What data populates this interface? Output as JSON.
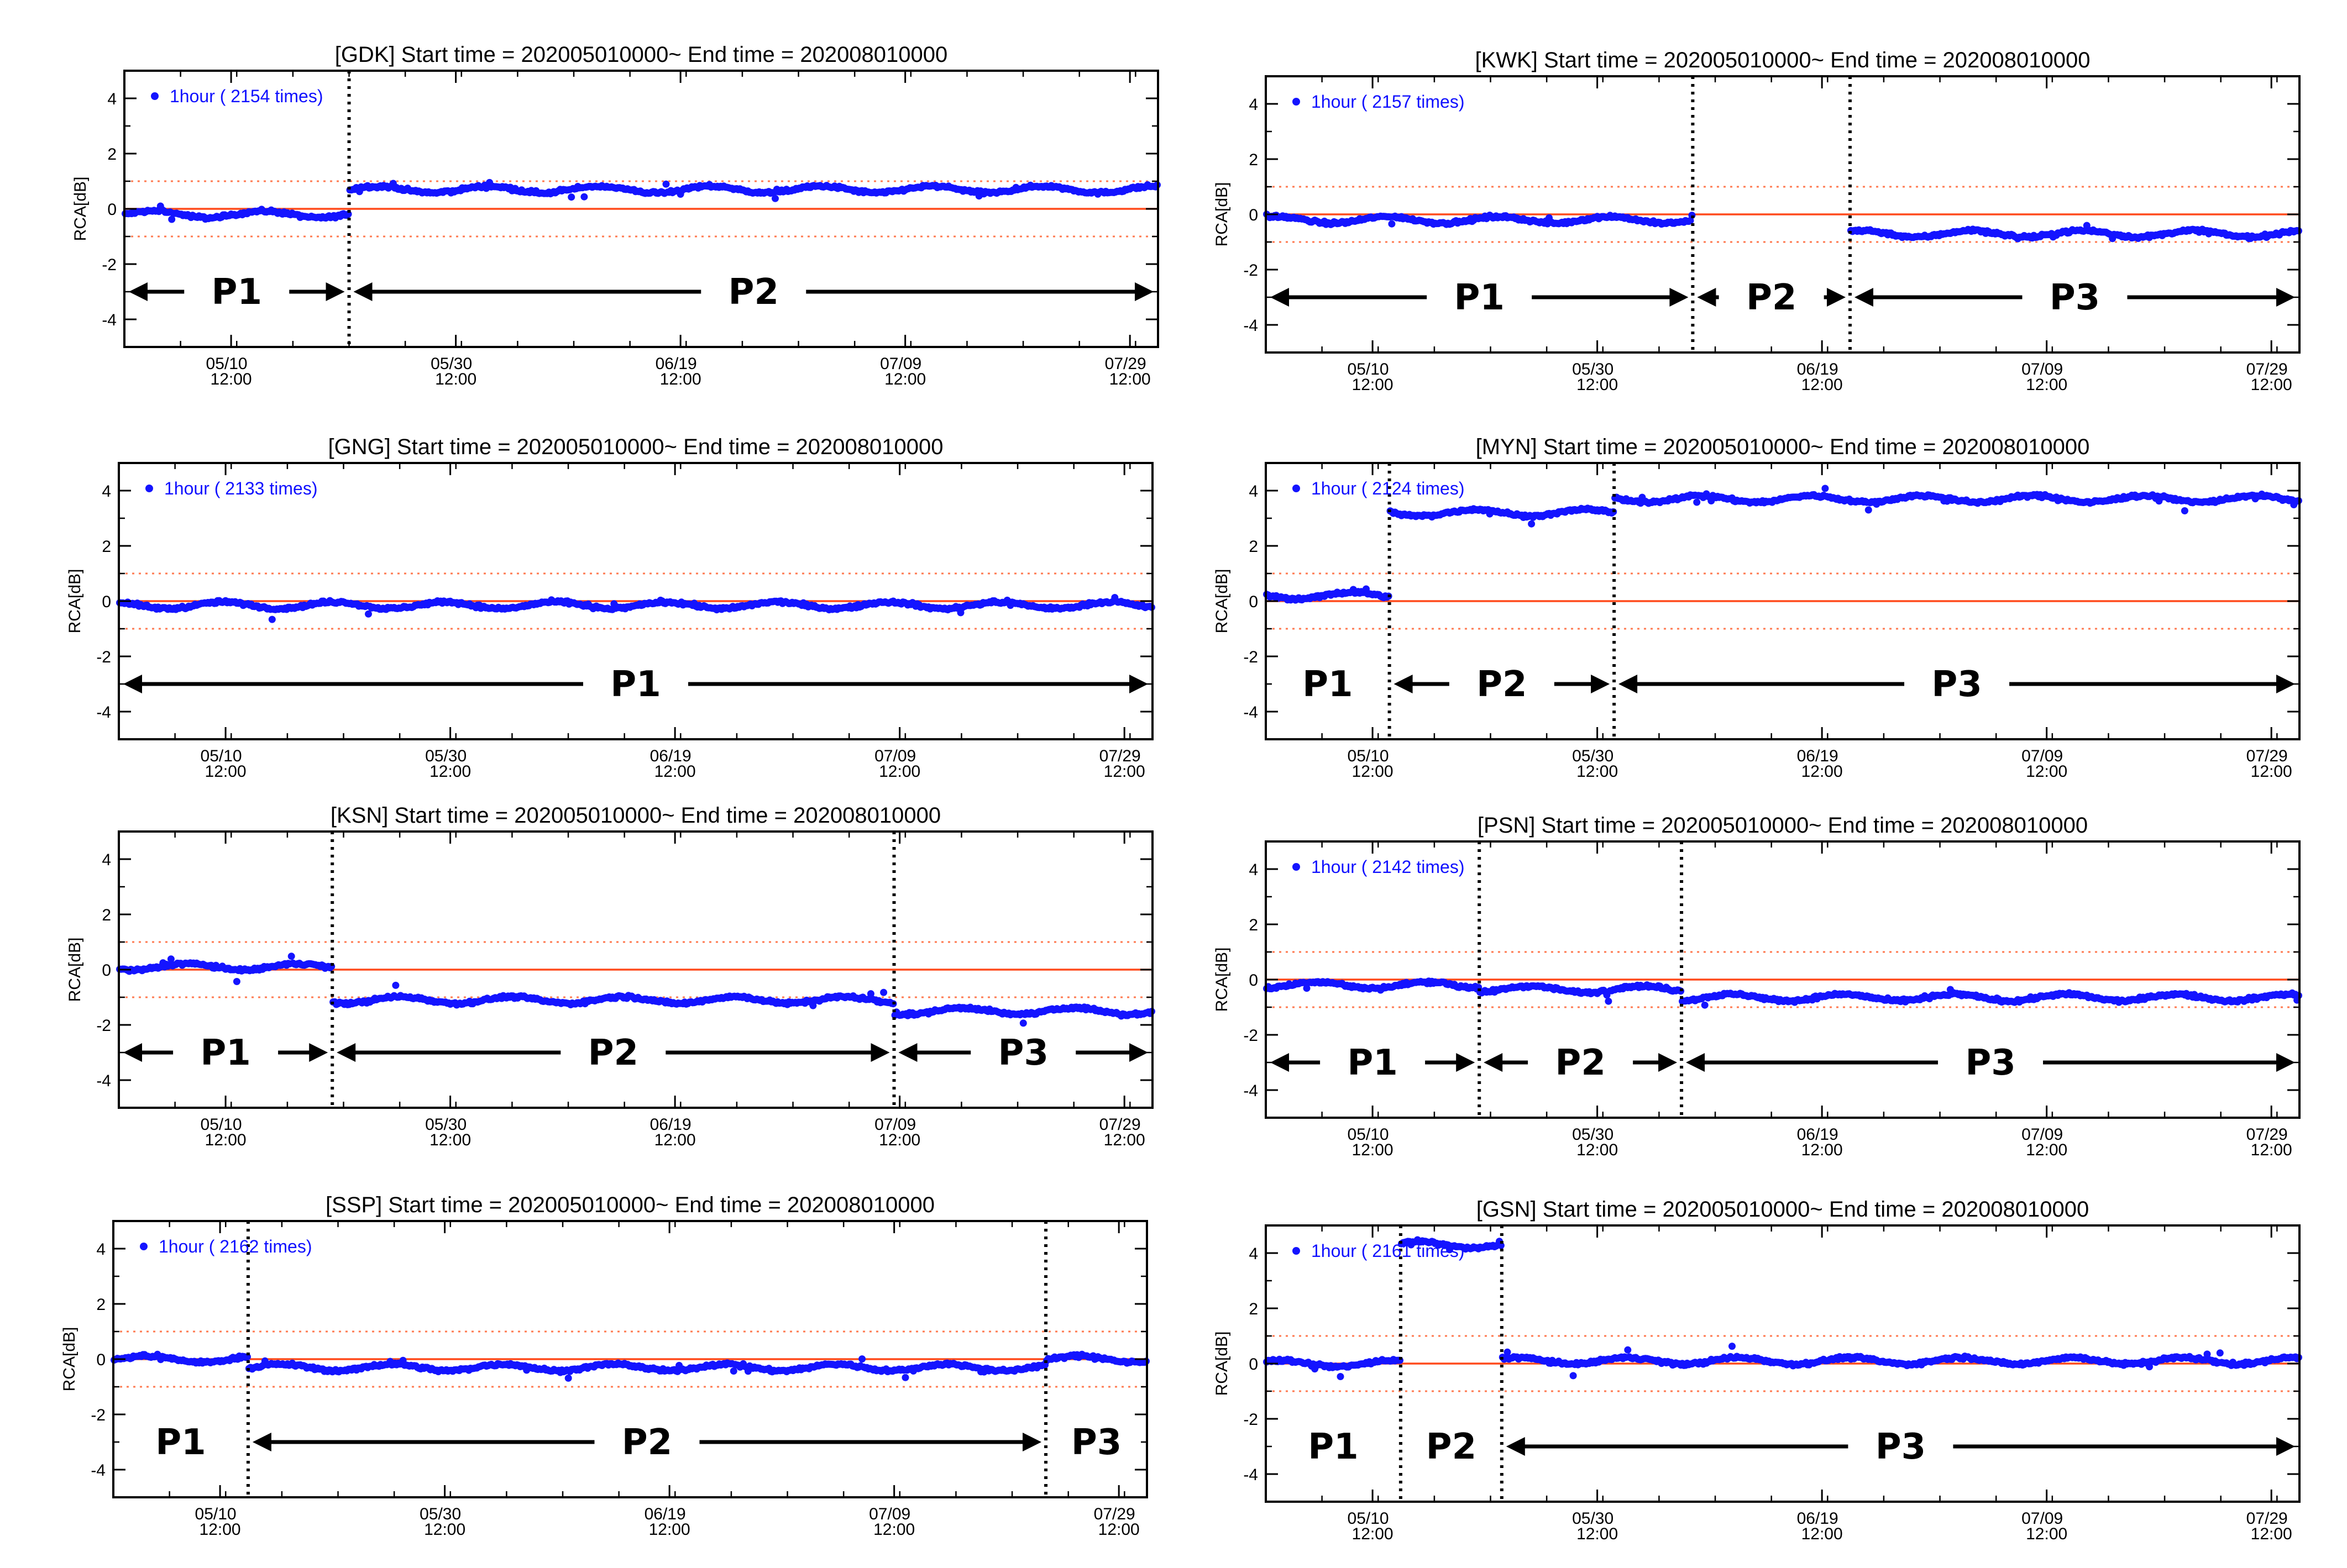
{
  "colors": {
    "points": "#1414ff",
    "reference": "#ff4a1c",
    "threshold": "#ff7a50",
    "axis": "#000000"
  },
  "chart_data": [
    {
      "type": "scatter",
      "title": "[GDK] Start time = 202005010000~ End time = 202008010000",
      "ylabel": "RCA[dB]",
      "xlim": [
        "2020-05-01 00:00",
        "2020-08-01 00:00"
      ],
      "ylim": [
        -5,
        5
      ],
      "yticks": [
        "4",
        "2",
        "0",
        "-2",
        "-4"
      ],
      "xticks": [
        [
          "05/10",
          "12:00"
        ],
        [
          "05/30",
          "12:00"
        ],
        [
          "06/19",
          "12:00"
        ],
        [
          "07/09",
          "12:00"
        ],
        [
          "07/29",
          "12:00"
        ]
      ],
      "legend": "1hour ( 2154 times)",
      "reference_lines": [
        0,
        1,
        -1
      ],
      "segments": [
        {
          "name": "P1",
          "start": "2020-05-01",
          "end": "2020-05-21",
          "level_dB": -0.2
        },
        {
          "name": "P2",
          "start": "2020-05-21",
          "end": "2020-08-01",
          "level_dB": 0.7
        }
      ]
    },
    {
      "type": "scatter",
      "title": "[KWK] Start time = 202005010000~ End time = 202008010000",
      "ylabel": "RCA[dB]",
      "xlim": [
        "2020-05-01 00:00",
        "2020-08-01 00:00"
      ],
      "ylim": [
        -5,
        5
      ],
      "yticks": [
        "4",
        "2",
        "0",
        "-2",
        "-4"
      ],
      "xticks": [
        [
          "05/10",
          "12:00"
        ],
        [
          "05/30",
          "12:00"
        ],
        [
          "06/19",
          "12:00"
        ],
        [
          "07/09",
          "12:00"
        ],
        [
          "07/29",
          "12:00"
        ]
      ],
      "legend": "1hour ( 2157 times)",
      "reference_lines": [
        0,
        1,
        -1
      ],
      "segments": [
        {
          "name": "P1",
          "start": "2020-05-01",
          "end": "2020-06-08",
          "level_dB": -0.2
        },
        {
          "name": "P2",
          "start": "2020-06-08",
          "end": "2020-06-22",
          "level_dB": null
        },
        {
          "name": "P3",
          "start": "2020-06-22",
          "end": "2020-08-01",
          "level_dB": -0.7
        }
      ]
    },
    {
      "type": "scatter",
      "title": "[GNG] Start time = 202005010000~ End time = 202008010000",
      "ylabel": "RCA[dB]",
      "xlim": [
        "2020-05-01 00:00",
        "2020-08-01 00:00"
      ],
      "ylim": [
        -5,
        5
      ],
      "yticks": [
        "4",
        "2",
        "0",
        "-2",
        "-4"
      ],
      "xticks": [
        [
          "05/10",
          "12:00"
        ],
        [
          "05/30",
          "12:00"
        ],
        [
          "06/19",
          "12:00"
        ],
        [
          "07/09",
          "12:00"
        ],
        [
          "07/29",
          "12:00"
        ]
      ],
      "legend": "1hour ( 2133 times)",
      "reference_lines": [
        0,
        1,
        -1
      ],
      "segments": [
        {
          "name": "P1",
          "start": "2020-05-01",
          "end": "2020-08-01",
          "level_dB": -0.15
        }
      ]
    },
    {
      "type": "scatter",
      "title": "[MYN] Start time = 202005010000~ End time = 202008010000",
      "ylabel": "RCA[dB]",
      "xlim": [
        "2020-05-01 00:00",
        "2020-08-01 00:00"
      ],
      "ylim": [
        -5,
        5
      ],
      "yticks": [
        "4",
        "2",
        "0",
        "-2",
        "-4"
      ],
      "xticks": [
        [
          "05/10",
          "12:00"
        ],
        [
          "05/30",
          "12:00"
        ],
        [
          "06/19",
          "12:00"
        ],
        [
          "07/09",
          "12:00"
        ],
        [
          "07/29",
          "12:00"
        ]
      ],
      "legend": "1hour ( 2124 times)",
      "reference_lines": [
        0,
        1,
        -1
      ],
      "segments": [
        {
          "name": "P1",
          "start": "2020-05-01",
          "end": "2020-05-12",
          "level_dB": 0.2
        },
        {
          "name": "P2",
          "start": "2020-05-12",
          "end": "2020-06-01",
          "level_dB": 3.2
        },
        {
          "name": "P3",
          "start": "2020-06-01",
          "end": "2020-08-01",
          "level_dB": 3.7
        }
      ]
    },
    {
      "type": "scatter",
      "title": "[KSN] Start time = 202005010000~ End time = 202008010000",
      "ylabel": "RCA[dB]",
      "xlim": [
        "2020-05-01 00:00",
        "2020-08-01 00:00"
      ],
      "ylim": [
        -5,
        5
      ],
      "yticks": [
        "4",
        "2",
        "0",
        "-2",
        "-4"
      ],
      "xticks": [
        [
          "05/10",
          "12:00"
        ],
        [
          "05/30",
          "12:00"
        ],
        [
          "06/19",
          "12:00"
        ],
        [
          "07/09",
          "12:00"
        ],
        [
          "07/29",
          "12:00"
        ]
      ],
      "legend": "",
      "reference_lines": [
        0,
        1,
        -1
      ],
      "segments": [
        {
          "name": "P1",
          "start": "2020-05-01",
          "end": "2020-05-20",
          "level_dB": 0.1
        },
        {
          "name": "P2",
          "start": "2020-05-20",
          "end": "2020-07-09",
          "level_dB": -1.1
        },
        {
          "name": "P3",
          "start": "2020-07-09",
          "end": "2020-08-01",
          "level_dB": -1.5
        }
      ]
    },
    {
      "type": "scatter",
      "title": "[PSN] Start time = 202005010000~ End time = 202008010000",
      "ylabel": "RCA[dB]",
      "xlim": [
        "2020-05-01 00:00",
        "2020-08-01 00:00"
      ],
      "ylim": [
        -5,
        5
      ],
      "yticks": [
        "4",
        "2",
        "0",
        "-2",
        "-4"
      ],
      "xticks": [
        [
          "05/10",
          "12:00"
        ],
        [
          "05/30",
          "12:00"
        ],
        [
          "06/19",
          "12:00"
        ],
        [
          "07/09",
          "12:00"
        ],
        [
          "07/29",
          "12:00"
        ]
      ],
      "legend": "1hour ( 2142 times)",
      "reference_lines": [
        0,
        1,
        -1
      ],
      "segments": [
        {
          "name": "P1",
          "start": "2020-05-01",
          "end": "2020-05-20",
          "level_dB": -0.2
        },
        {
          "name": "P2",
          "start": "2020-05-20",
          "end": "2020-06-07",
          "level_dB": -0.35
        },
        {
          "name": "P3",
          "start": "2020-06-07",
          "end": "2020-08-01",
          "level_dB": -0.65
        }
      ]
    },
    {
      "type": "scatter",
      "title": "[SSP] Start time = 202005010000~ End time = 202008010000",
      "ylabel": "RCA[dB]",
      "xlim": [
        "2020-05-01 00:00",
        "2020-08-01 00:00"
      ],
      "ylim": [
        -5,
        5
      ],
      "yticks": [
        "4",
        "2",
        "0",
        "-2",
        "-4"
      ],
      "xticks": [
        [
          "05/10",
          "12:00"
        ],
        [
          "05/30",
          "12:00"
        ],
        [
          "06/19",
          "12:00"
        ],
        [
          "07/09",
          "12:00"
        ],
        [
          "07/29",
          "12:00"
        ]
      ],
      "legend": "1hour ( 2162 times)",
      "reference_lines": [
        0,
        1,
        -1
      ],
      "segments": [
        {
          "name": "P1",
          "start": "2020-05-01",
          "end": "2020-05-13",
          "level_dB": 0.0
        },
        {
          "name": "P2",
          "start": "2020-05-13",
          "end": "2020-07-23",
          "level_dB": -0.3
        },
        {
          "name": "P3",
          "start": "2020-07-23",
          "end": "2020-08-01",
          "level_dB": 0.0
        }
      ]
    },
    {
      "type": "scatter",
      "title": "[GSN] Start time = 202005010000~ End time = 202008010000",
      "ylabel": "RCA[dB]",
      "xlim": [
        "2020-05-01 00:00",
        "2020-08-01 00:00"
      ],
      "ylim": [
        -5,
        5
      ],
      "yticks": [
        "4",
        "2",
        "0",
        "-2",
        "-4"
      ],
      "xticks": [
        [
          "05/10",
          "12:00"
        ],
        [
          "05/30",
          "12:00"
        ],
        [
          "06/19",
          "12:00"
        ],
        [
          "07/09",
          "12:00"
        ],
        [
          "07/29",
          "12:00"
        ]
      ],
      "legend": "1hour ( 2161 times)",
      "reference_lines": [
        0,
        1,
        -1
      ],
      "segments": [
        {
          "name": "P1",
          "start": "2020-05-01",
          "end": "2020-05-13",
          "level_dB": 0.0
        },
        {
          "name": "P2",
          "start": "2020-05-13",
          "end": "2020-05-22",
          "level_dB": 4.3
        },
        {
          "name": "P3",
          "start": "2020-05-22",
          "end": "2020-08-01",
          "level_dB": 0.1
        }
      ]
    }
  ]
}
